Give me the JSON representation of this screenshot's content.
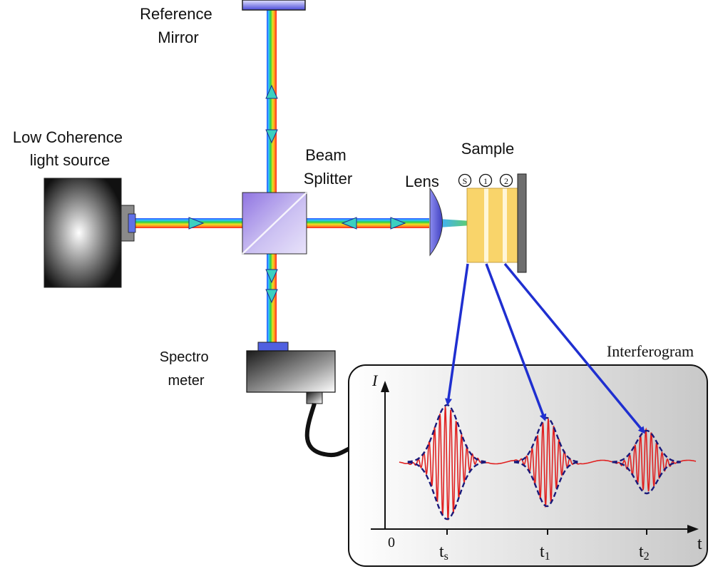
{
  "labels": {
    "reference_mirror": [
      "Reference",
      "Mirror"
    ],
    "light_source": [
      "Low Coherence",
      "light source"
    ],
    "beam_splitter": [
      "Beam",
      "Splitter"
    ],
    "lens": "Lens",
    "sample": "Sample",
    "spectrometer": [
      "Spectro",
      "meter"
    ],
    "interferogram": "Interferogram"
  },
  "sample_layers": [
    "S",
    "1",
    "2"
  ],
  "plot": {
    "y_axis": "I",
    "x_axis": "t",
    "origin": "0",
    "ticks": [
      {
        "base": "t",
        "sub": "s"
      },
      {
        "base": "t",
        "sub": "1"
      },
      {
        "base": "t",
        "sub": "2"
      }
    ]
  },
  "colors": {
    "signal": "#e02020",
    "envelope": "#1a1a7a",
    "arrow": "#1f2fd0",
    "sample_layer": "#f9d46a"
  }
}
